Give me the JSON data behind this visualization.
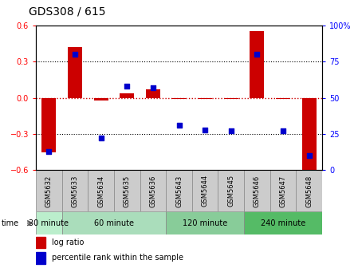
{
  "title": "GDS308 / 615",
  "samples": [
    "GSM5632",
    "GSM5633",
    "GSM5634",
    "GSM5635",
    "GSM5636",
    "GSM5643",
    "GSM5644",
    "GSM5645",
    "GSM5646",
    "GSM5647",
    "GSM5648"
  ],
  "log_ratio": [
    -0.45,
    0.42,
    -0.02,
    0.04,
    0.07,
    -0.01,
    -0.01,
    -0.01,
    0.55,
    -0.01,
    -0.62
  ],
  "percentile_rank": [
    13,
    80,
    22,
    58,
    57,
    31,
    28,
    27,
    80,
    27,
    10
  ],
  "groups": [
    {
      "label": "30 minute",
      "indices": [
        0
      ],
      "color": "#bbeecc"
    },
    {
      "label": "60 minute",
      "indices": [
        1,
        2,
        3,
        4
      ],
      "color": "#aaddbb"
    },
    {
      "label": "120 minute",
      "indices": [
        5,
        6,
        7
      ],
      "color": "#88cc99"
    },
    {
      "label": "240 minute",
      "indices": [
        8,
        9,
        10
      ],
      "color": "#55bb66"
    }
  ],
  "ylim_left": [
    -0.6,
    0.6
  ],
  "ylim_right": [
    0,
    100
  ],
  "yticks_left": [
    -0.6,
    -0.3,
    0.0,
    0.3,
    0.6
  ],
  "yticks_right": [
    0,
    25,
    50,
    75,
    100
  ],
  "ytick_labels_right": [
    "0",
    "25",
    "50",
    "75",
    "100%"
  ],
  "bar_color": "#cc0000",
  "dot_color": "#0000cc",
  "zero_line_color": "#cc0000",
  "grid_color": "#000000",
  "bar_width": 0.55,
  "label_bg": "#cccccc",
  "fig_bg": "#ffffff"
}
